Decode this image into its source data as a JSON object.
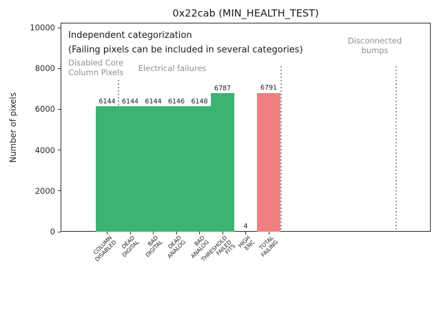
{
  "title": "0x22cab (MIN_HEALTH_TEST)",
  "annotations": {
    "independent": "Independent categorization",
    "failing_note": "(Failing pixels can be included in several categories)",
    "disabled_core": "Disabled Core\nColumn Pixels",
    "electrical": "Electrical failures",
    "disconnected": "Disconnected\nbumps"
  },
  "colors": {
    "green": "#3cb371",
    "red": "#f08080",
    "gray_text": "#8f8f8f",
    "separator": "#999999",
    "spine": "#262626"
  },
  "chart_data": {
    "type": "bar",
    "title": "0x22cab (MIN_HEALTH_TEST)",
    "xlabel": "",
    "ylabel": "Number of pixels",
    "categories": [
      "COLUMN\nDISABLED",
      "DEAD\nDIGITAL",
      "BAD\nDIGITAL",
      "DEAD\nANALOG",
      "BAD\nANALOG",
      "THRESHOLD\nFAILED\nFITS",
      "HIGH\nENC",
      "TOTAL\nFAILING"
    ],
    "values": [
      6144,
      6144,
      6144,
      6146,
      6148,
      6787,
      4,
      6791
    ],
    "value_labels": [
      "6144",
      "6144",
      "6144",
      "6146",
      "6148",
      "6787",
      "4",
      "6791"
    ],
    "bar_colors": [
      "green",
      "green",
      "green",
      "green",
      "green",
      "green",
      "green",
      "red"
    ],
    "yticks": [
      0,
      2000,
      4000,
      6000,
      8000,
      10000
    ],
    "ylim": [
      0,
      10200
    ],
    "grid": false,
    "legend": null,
    "section_labels": [
      "Disabled Core Column Pixels",
      "Electrical failures",
      "Disconnected bumps"
    ]
  }
}
